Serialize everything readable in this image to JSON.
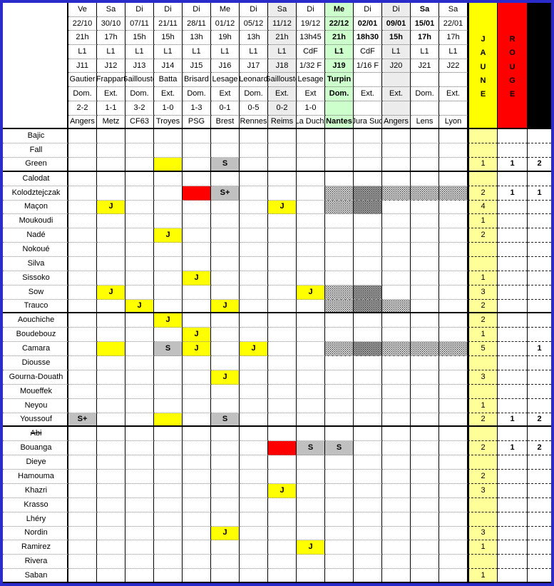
{
  "right_columns": {
    "jaune_label": "JAUNE",
    "rouge_label": "ROUGE",
    "suspendu_label": "SUSPENDU"
  },
  "header_fields": [
    "day",
    "date",
    "time",
    "comp",
    "round",
    "referee",
    "venue",
    "score",
    "opponent"
  ],
  "columns": [
    {
      "day": "Ve",
      "date": "22/10",
      "time": "21h",
      "comp": "L1",
      "round": "J11",
      "referee": "Gautier",
      "venue": "Dom.",
      "score": "2-2",
      "opponent": "Angers",
      "color": "green",
      "bg": "white",
      "bold": []
    },
    {
      "day": "Sa",
      "date": "30/10",
      "time": "17h",
      "comp": "L1",
      "round": "J12",
      "referee": "Frappart",
      "venue": "Ext.",
      "score": "1-1",
      "opponent": "Metz",
      "color": "black",
      "bg": "white",
      "bold": []
    },
    {
      "day": "Di",
      "date": "07/11",
      "time": "15h",
      "comp": "L1",
      "round": "J13",
      "referee": "Gaillouste",
      "venue": "Dom.",
      "score": "3-2",
      "opponent": "CF63",
      "color": "green",
      "bg": "white",
      "bold": []
    },
    {
      "day": "Di",
      "date": "21/11",
      "time": "15h",
      "comp": "L1",
      "round": "J14",
      "referee": "Batta",
      "venue": "Ext.",
      "score": "1-0",
      "opponent": "Troyes",
      "color": "black",
      "bg": "white",
      "bold": []
    },
    {
      "day": "Di",
      "date": "28/11",
      "time": "13h",
      "comp": "L1",
      "round": "J15",
      "referee": "Brisard",
      "venue": "Dom.",
      "score": "1-3",
      "opponent": "PSG",
      "color": "green",
      "bg": "white",
      "bold": []
    },
    {
      "day": "Me",
      "date": "01/12",
      "time": "19h",
      "comp": "L1",
      "round": "J16",
      "referee": "Lesage",
      "venue": "Ext",
      "score": "0-1",
      "opponent": "Brest",
      "color": "black",
      "bg": "white",
      "bold": []
    },
    {
      "day": "Di",
      "date": "05/12",
      "time": "13h",
      "comp": "L1",
      "round": "J17",
      "referee": "Leonard",
      "venue": "Dom.",
      "score": "0-5",
      "opponent": "Rennes",
      "color": "green",
      "bg": "white",
      "bold": []
    },
    {
      "day": "Sa",
      "date": "11/12",
      "time": "21h",
      "comp": "L1",
      "round": "J18",
      "referee": "Gaillouste",
      "venue": "Ext.",
      "score": "0-2",
      "opponent": "Reims",
      "color": "black",
      "bg": "gray",
      "bold": []
    },
    {
      "day": "Di",
      "date": "19/12",
      "time": "13h45",
      "comp": "CdF",
      "round": "1/32 F",
      "referee": "Lesage",
      "venue": "Ext",
      "score": "1-0",
      "opponent": "La Duch.",
      "color": "black",
      "bg": "white",
      "bold": []
    },
    {
      "day": "Me",
      "date": "22/12",
      "time": "21h",
      "comp": "L1",
      "round": "J19",
      "referee": "Turpin",
      "venue": "Dom.",
      "score": "",
      "opponent": "Nantes",
      "color": "green",
      "bg": "green",
      "bold": [
        "day",
        "date",
        "time",
        "comp",
        "round",
        "referee",
        "venue",
        "opponent"
      ]
    },
    {
      "day": "Di",
      "date": "02/01",
      "time": "18h30",
      "comp": "CdF",
      "round": "1/16 F",
      "referee": "",
      "venue": "Ext.",
      "score": "",
      "opponent": "Jura Sud",
      "color": "black",
      "bg": "white",
      "bold": [
        "date",
        "time"
      ]
    },
    {
      "day": "Di",
      "date": "09/01",
      "time": "15h",
      "comp": "L1",
      "round": "J20",
      "referee": "",
      "venue": "Ext.",
      "score": "",
      "opponent": "Angers",
      "color": "black",
      "bg": "gray",
      "bold": [
        "date",
        "time"
      ]
    },
    {
      "day": "Sa",
      "date": "15/01",
      "time": "17h",
      "comp": "L1",
      "round": "J21",
      "referee": "",
      "venue": "Dom.",
      "score": "",
      "opponent": "Lens",
      "color": "green",
      "bg": "white",
      "bold": [
        "day",
        "date",
        "time"
      ]
    },
    {
      "day": "Sa",
      "date": "22/01",
      "time": "17h",
      "comp": "L1",
      "round": "J22",
      "referee": "",
      "venue": "Ext.",
      "score": "",
      "opponent": "Lyon",
      "color": "black",
      "bg": "white",
      "bold": []
    }
  ],
  "marker_legend": {
    "J": "yellow-card",
    "Y": "yellow-card-no-letter",
    "R": "red-card",
    "S": "suspended",
    "S+": "suspended-plus",
    "hl": "light-hatch-absence",
    "hd": "dark-hatch-absence"
  },
  "sections": [
    {
      "players": [
        {
          "name": "Bajic",
          "cells": {},
          "j": "",
          "r": "",
          "s": ""
        },
        {
          "name": "Fall",
          "cells": {},
          "j": "",
          "r": "",
          "s": ""
        },
        {
          "name": "Green",
          "red": true,
          "cells": {
            "4": "Y",
            "6": "S"
          },
          "j": "1",
          "r": "1",
          "s": "2"
        }
      ]
    },
    {
      "players": [
        {
          "name": "Calodat",
          "cells": {},
          "j": "",
          "r": "",
          "s": ""
        },
        {
          "name": "Kolodztejczak",
          "cells": {
            "5": "R",
            "6": "S+",
            "10": "hl",
            "11": "hd",
            "12": "hl",
            "13": "hl",
            "14": "hl"
          },
          "j": "2",
          "r": "1",
          "s": "1"
        },
        {
          "name": "Maçon",
          "cells": {
            "2": "J",
            "8": "J",
            "10": "hl",
            "11": "hd"
          },
          "j": "4",
          "r": "",
          "s": ""
        },
        {
          "name": "Moukoudi",
          "red": true,
          "cells": {},
          "j": "1",
          "r": "",
          "s": ""
        },
        {
          "name": "Nadé",
          "cells": {
            "4": "J"
          },
          "j": "2",
          "r": "",
          "s": ""
        },
        {
          "name": "Nokoué",
          "cells": {},
          "j": "",
          "r": "",
          "s": ""
        },
        {
          "name": "Silva",
          "cells": {},
          "j": "",
          "r": "",
          "s": ""
        },
        {
          "name": "Sissoko",
          "cells": {
            "5": "J"
          },
          "j": "1",
          "r": "",
          "s": ""
        },
        {
          "name": "Sow",
          "cells": {
            "2": "J",
            "9": "J",
            "10": "hl",
            "11": "hd"
          },
          "j": "3",
          "r": "",
          "s": ""
        },
        {
          "name": "Trauco",
          "cells": {
            "3": "J",
            "6": "J",
            "10": "hl",
            "11": "hd",
            "12": "hl"
          },
          "j": "2",
          "r": "",
          "s": ""
        }
      ]
    },
    {
      "players": [
        {
          "name": "Aouchiche",
          "cells": {
            "4": "J"
          },
          "j": "2",
          "r": "",
          "s": ""
        },
        {
          "name": "Boudebouz",
          "cells": {
            "5": "J"
          },
          "j": "1",
          "r": "",
          "s": ""
        },
        {
          "name": "Camara",
          "cells": {
            "2": "Y",
            "4": "S",
            "5": "J",
            "7": "J",
            "10": "hl",
            "11": "hd",
            "12": "hl",
            "13": "hl",
            "14": "hl"
          },
          "j": "5",
          "r": "",
          "s": "1"
        },
        {
          "name": "Diousse",
          "cells": {},
          "j": "",
          "r": "",
          "s": ""
        },
        {
          "name": "Gourna-Douath",
          "cells": {
            "6": "J"
          },
          "j": "3",
          "r": "",
          "s": ""
        },
        {
          "name": "Moueffek",
          "cells": {},
          "j": "",
          "r": "",
          "s": ""
        },
        {
          "name": "Neyou",
          "cells": {},
          "j": "1",
          "r": "",
          "s": ""
        },
        {
          "name": "Youssouf",
          "cells": {
            "1": "S+",
            "4": "Y",
            "6": "S"
          },
          "j": "2",
          "r": "1",
          "s": "2"
        }
      ]
    },
    {
      "players": [
        {
          "name": "Abi",
          "strike": true,
          "cells": {},
          "j": "",
          "r": "",
          "s": ""
        },
        {
          "name": "Bouanga",
          "cells": {
            "8": "R",
            "9": "S",
            "10": "S"
          },
          "j": "2",
          "r": "1",
          "s": "2"
        },
        {
          "name": "Dieye",
          "cells": {},
          "j": "",
          "r": "",
          "s": ""
        },
        {
          "name": "Hamouma",
          "red": true,
          "cells": {},
          "j": "2",
          "r": "",
          "s": ""
        },
        {
          "name": "Khazri",
          "cells": {
            "8": "J"
          },
          "j": "3",
          "r": "",
          "s": ""
        },
        {
          "name": "Krasso",
          "cells": {},
          "j": "",
          "r": "",
          "s": ""
        },
        {
          "name": "Lhéry",
          "cells": {},
          "j": "",
          "r": "",
          "s": ""
        },
        {
          "name": "Nordin",
          "cells": {
            "6": "J"
          },
          "j": "3",
          "r": "",
          "s": ""
        },
        {
          "name": "Ramirez",
          "cells": {
            "9": "J"
          },
          "j": "1",
          "r": "",
          "s": ""
        },
        {
          "name": "Rivera",
          "cells": {},
          "j": "",
          "r": "",
          "s": ""
        },
        {
          "name": "Saban",
          "cells": {},
          "j": "1",
          "r": "",
          "s": ""
        }
      ]
    }
  ]
}
